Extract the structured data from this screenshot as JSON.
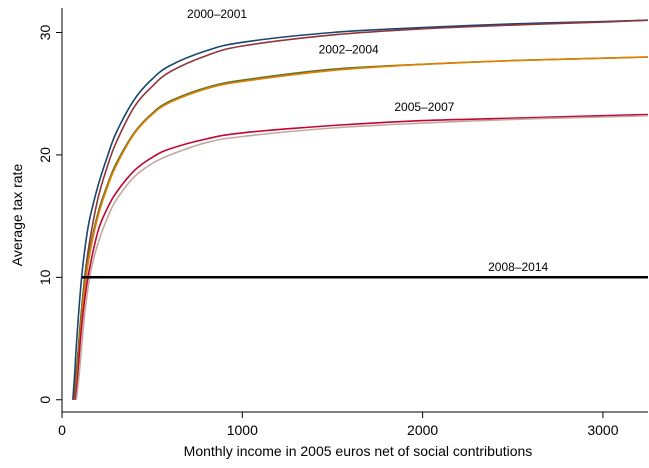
{
  "chart_data": {
    "type": "line",
    "title": "",
    "xlabel": "Monthly income in 2005 euros net of social contributions",
    "ylabel": "Average tax rate",
    "xlim": [
      0,
      3250
    ],
    "ylim": [
      -1,
      32
    ],
    "xticks": [
      0,
      1000,
      2000,
      3000
    ],
    "yticks": [
      0,
      10,
      20,
      30
    ],
    "grid": false,
    "legend": "none",
    "series": [
      {
        "color": "#1a476f",
        "points": [
          [
            60,
            0
          ],
          [
            70,
            2
          ],
          [
            80,
            4.5
          ],
          [
            100,
            8.5
          ],
          [
            120,
            11.5
          ],
          [
            150,
            14.5
          ],
          [
            200,
            17.5
          ],
          [
            250,
            19.8
          ],
          [
            300,
            21.8
          ],
          [
            400,
            24.5
          ],
          [
            500,
            26.2
          ],
          [
            600,
            27.3
          ],
          [
            800,
            28.5
          ],
          [
            1000,
            29.2
          ],
          [
            1500,
            30.0
          ],
          [
            2000,
            30.4
          ],
          [
            2500,
            30.7
          ],
          [
            3000,
            30.9
          ],
          [
            3250,
            31.0
          ]
        ]
      },
      {
        "color": "#90353b",
        "points": [
          [
            65,
            0
          ],
          [
            75,
            1.5
          ],
          [
            90,
            4
          ],
          [
            110,
            7.5
          ],
          [
            130,
            10.5
          ],
          [
            160,
            13.5
          ],
          [
            200,
            16.5
          ],
          [
            250,
            19.0
          ],
          [
            300,
            21.0
          ],
          [
            400,
            23.9
          ],
          [
            500,
            25.6
          ],
          [
            600,
            26.8
          ],
          [
            800,
            28.1
          ],
          [
            1000,
            28.9
          ],
          [
            1500,
            29.8
          ],
          [
            2000,
            30.3
          ],
          [
            2500,
            30.6
          ],
          [
            3000,
            30.85
          ],
          [
            3250,
            31.0
          ]
        ]
      },
      {
        "color": "#55752f",
        "points": [
          [
            70,
            0
          ],
          [
            85,
            3
          ],
          [
            100,
            6
          ],
          [
            120,
            9
          ],
          [
            150,
            12
          ],
          [
            200,
            15.3
          ],
          [
            250,
            17.5
          ],
          [
            300,
            19.3
          ],
          [
            400,
            21.8
          ],
          [
            500,
            23.4
          ],
          [
            600,
            24.4
          ],
          [
            800,
            25.5
          ],
          [
            1000,
            26.1
          ],
          [
            1500,
            27.0
          ],
          [
            2000,
            27.4
          ],
          [
            2500,
            27.7
          ],
          [
            3000,
            27.9
          ],
          [
            3250,
            28.0
          ]
        ]
      },
      {
        "color": "#e37e00",
        "points": [
          [
            75,
            0
          ],
          [
            90,
            3
          ],
          [
            105,
            6
          ],
          [
            125,
            9
          ],
          [
            155,
            12
          ],
          [
            200,
            15.0
          ],
          [
            250,
            17.3
          ],
          [
            300,
            19.1
          ],
          [
            400,
            21.7
          ],
          [
            500,
            23.3
          ],
          [
            600,
            24.3
          ],
          [
            800,
            25.4
          ],
          [
            1000,
            26.0
          ],
          [
            1500,
            26.9
          ],
          [
            2000,
            27.4
          ],
          [
            2500,
            27.7
          ],
          [
            3000,
            27.9
          ],
          [
            3250,
            28.0
          ]
        ]
      },
      {
        "color": "#c10534",
        "points": [
          [
            75,
            0
          ],
          [
            88,
            2
          ],
          [
            100,
            4.5
          ],
          [
            120,
            7.5
          ],
          [
            150,
            10.5
          ],
          [
            200,
            13.8
          ],
          [
            250,
            15.6
          ],
          [
            300,
            16.9
          ],
          [
            400,
            18.7
          ],
          [
            500,
            19.8
          ],
          [
            600,
            20.5
          ],
          [
            800,
            21.3
          ],
          [
            1000,
            21.8
          ],
          [
            1500,
            22.4
          ],
          [
            2000,
            22.8
          ],
          [
            2500,
            23.0
          ],
          [
            3000,
            23.2
          ],
          [
            3250,
            23.3
          ]
        ]
      },
      {
        "color": "#c4a8a0",
        "points": [
          [
            80,
            0
          ],
          [
            95,
            2
          ],
          [
            110,
            4.5
          ],
          [
            130,
            7.5
          ],
          [
            160,
            10.5
          ],
          [
            200,
            12.8
          ],
          [
            250,
            14.8
          ],
          [
            300,
            16.3
          ],
          [
            400,
            18.2
          ],
          [
            500,
            19.3
          ],
          [
            600,
            20.0
          ],
          [
            800,
            21.0
          ],
          [
            1000,
            21.5
          ],
          [
            1500,
            22.2
          ],
          [
            2000,
            22.6
          ],
          [
            2500,
            22.9
          ],
          [
            3000,
            23.1
          ],
          [
            3250,
            23.2
          ]
        ]
      },
      {
        "color": "#000000",
        "width": 2.5,
        "points": [
          [
            110,
            10
          ],
          [
            3250,
            10
          ]
        ]
      }
    ],
    "annotations": [
      {
        "text": "2000–2001",
        "x": 860,
        "y": 31.2
      },
      {
        "text": "2002–2004",
        "x": 1590,
        "y": 28.3
      },
      {
        "text": "2005–2007",
        "x": 2010,
        "y": 23.6
      },
      {
        "text": "2008–2014",
        "x": 2530,
        "y": 10.5
      }
    ]
  }
}
